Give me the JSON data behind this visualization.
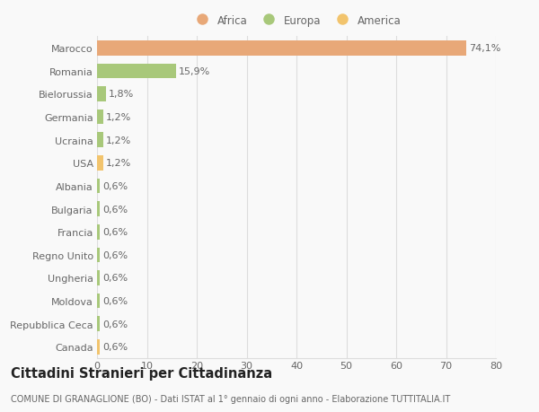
{
  "categories": [
    "Canada",
    "Repubblica Ceca",
    "Moldova",
    "Ungheria",
    "Regno Unito",
    "Francia",
    "Bulgaria",
    "Albania",
    "USA",
    "Ucraina",
    "Germania",
    "Bielorussia",
    "Romania",
    "Marocco"
  ],
  "values": [
    0.6,
    0.6,
    0.6,
    0.6,
    0.6,
    0.6,
    0.6,
    0.6,
    1.2,
    1.2,
    1.2,
    1.8,
    15.9,
    74.1
  ],
  "colors": [
    "#f2c46d",
    "#a8c87a",
    "#a8c87a",
    "#a8c87a",
    "#a8c87a",
    "#a8c87a",
    "#a8c87a",
    "#a8c87a",
    "#f2c46d",
    "#a8c87a",
    "#a8c87a",
    "#a8c87a",
    "#a8c87a",
    "#e8a878"
  ],
  "labels": [
    "0,6%",
    "0,6%",
    "0,6%",
    "0,6%",
    "0,6%",
    "0,6%",
    "0,6%",
    "0,6%",
    "1,2%",
    "1,2%",
    "1,2%",
    "1,8%",
    "15,9%",
    "74,1%"
  ],
  "legend": [
    {
      "label": "Africa",
      "color": "#e8a878"
    },
    {
      "label": "Europa",
      "color": "#a8c87a"
    },
    {
      "label": "America",
      "color": "#f2c46d"
    }
  ],
  "xlim": [
    0,
    80
  ],
  "xticks": [
    0,
    10,
    20,
    30,
    40,
    50,
    60,
    70,
    80
  ],
  "title": "Cittadini Stranieri per Cittadinanza",
  "subtitle": "COMUNE DI GRANAGLIONE (BO) - Dati ISTAT al 1° gennaio di ogni anno - Elaborazione TUTTITALIA.IT",
  "bg_color": "#f9f9f9",
  "grid_color": "#dddddd",
  "text_color": "#666666",
  "bar_label_fontsize": 8,
  "ytick_fontsize": 8,
  "xtick_fontsize": 8,
  "legend_fontsize": 8.5,
  "title_fontsize": 10.5,
  "subtitle_fontsize": 7
}
